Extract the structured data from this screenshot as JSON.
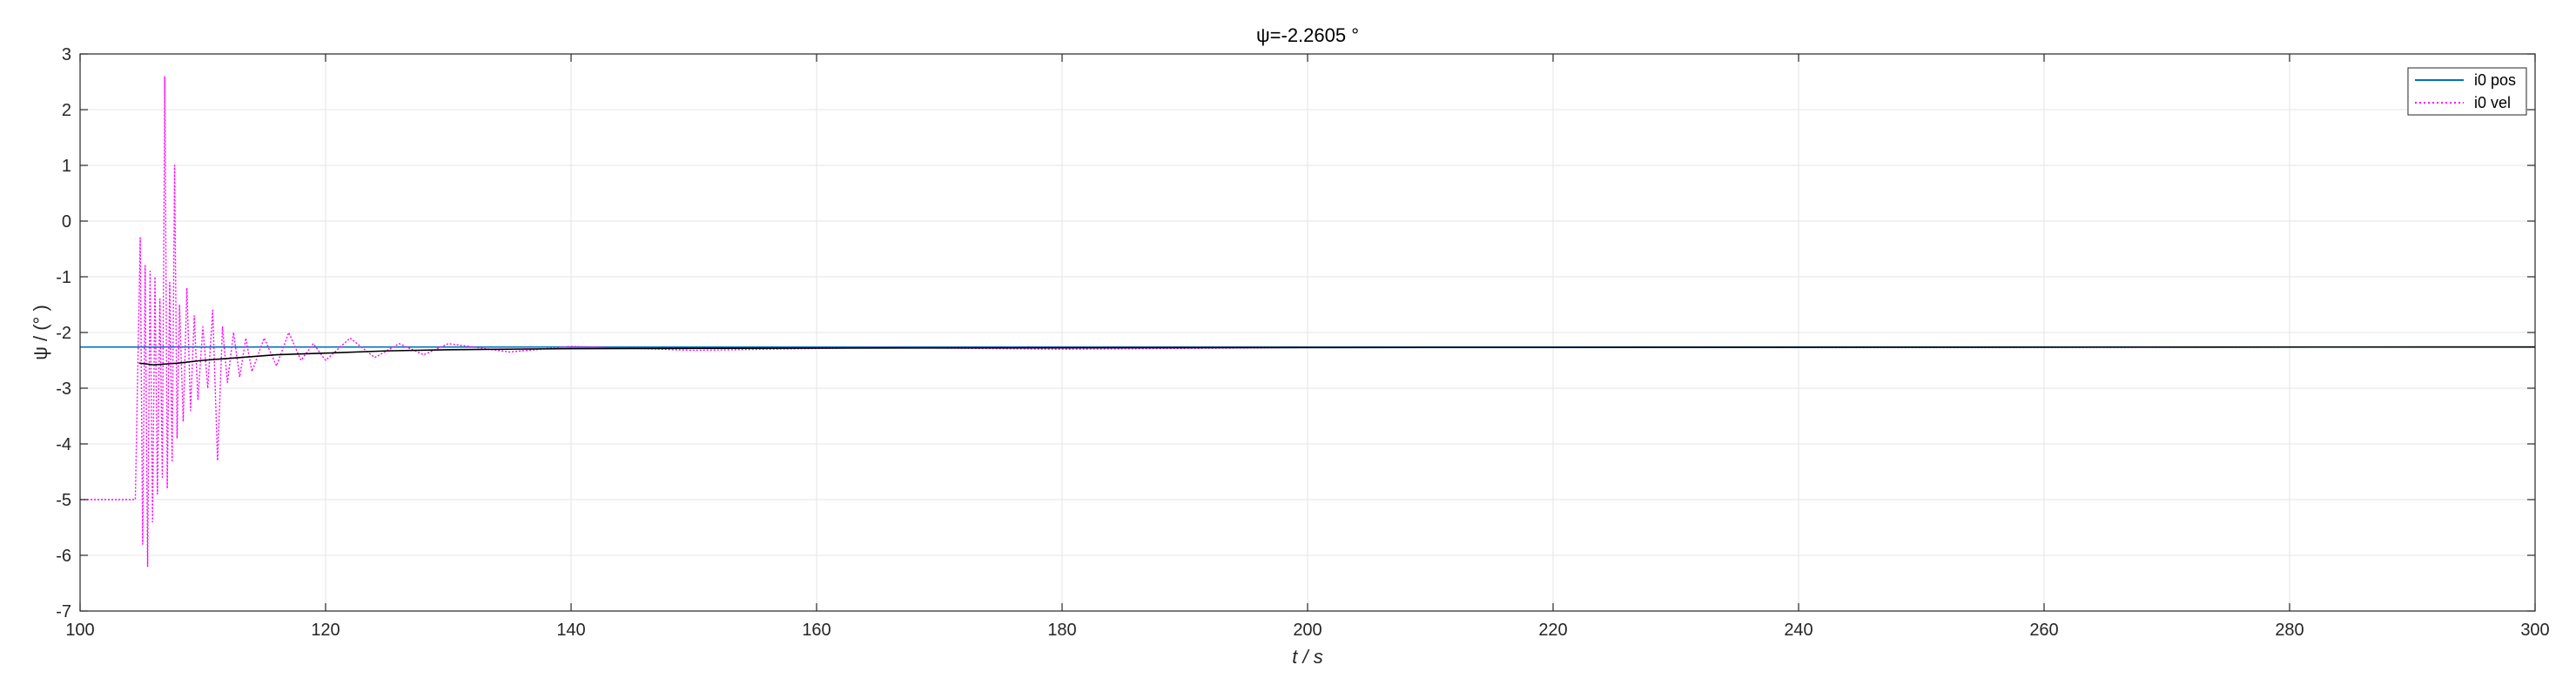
{
  "chart_data": {
    "type": "line",
    "title": "ψ=-2.2605 °",
    "xlabel": "t  / s",
    "ylabel": "ψ / (° )",
    "xlim": [
      100,
      300
    ],
    "ylim": [
      -7,
      3
    ],
    "xticks": [
      100,
      120,
      140,
      160,
      180,
      200,
      220,
      240,
      260,
      280,
      300
    ],
    "yticks": [
      -7,
      -6,
      -5,
      -4,
      -3,
      -2,
      -1,
      0,
      1,
      2,
      3
    ],
    "grid": true,
    "legend_position": "top-right",
    "series": [
      {
        "name": "i0 pos",
        "color": "#0072BD",
        "style": "solid",
        "x": [
          100,
          105,
          110,
          120,
          140,
          160,
          200,
          250,
          300
        ],
        "y": [
          -2.26,
          -2.26,
          -2.26,
          -2.26,
          -2.26,
          -2.26,
          -2.26,
          -2.26,
          -2.26
        ]
      },
      {
        "name": "i0 vel",
        "color": "#FF00FF",
        "style": "dotted",
        "x": [
          100,
          104.5,
          104.9,
          105.1,
          105.3,
          105.5,
          105.7,
          105.9,
          106.1,
          106.3,
          106.5,
          106.7,
          106.9,
          107.1,
          107.3,
          107.5,
          107.7,
          107.9,
          108.1,
          108.4,
          108.7,
          109.0,
          109.3,
          109.6,
          110.0,
          110.4,
          110.8,
          111.2,
          111.6,
          112.0,
          112.5,
          113.0,
          113.5,
          114.0,
          115.0,
          116.0,
          117.0,
          118.0,
          119.0,
          120.0,
          122.0,
          124.0,
          126.0,
          128.0,
          130.0,
          135.0,
          140.0,
          150.0,
          165.0,
          180.0,
          200.0,
          240.0,
          300.0
        ],
        "y": [
          -5.0,
          -5.0,
          -0.3,
          -5.8,
          -0.8,
          -6.2,
          -0.9,
          -5.4,
          -1.0,
          -4.9,
          -1.4,
          -4.6,
          2.6,
          -4.8,
          -1.1,
          -4.3,
          1.0,
          -3.9,
          -1.5,
          -3.6,
          -1.2,
          -3.4,
          -1.7,
          -3.2,
          -1.9,
          -3.0,
          -1.6,
          -4.3,
          -1.9,
          -2.9,
          -2.0,
          -2.8,
          -2.1,
          -2.7,
          -2.1,
          -2.6,
          -2.0,
          -2.5,
          -2.2,
          -2.5,
          -2.1,
          -2.45,
          -2.2,
          -2.4,
          -2.2,
          -2.35,
          -2.25,
          -2.32,
          -2.27,
          -2.3,
          -2.27,
          -2.27,
          -2.26
        ]
      },
      {
        "name": "",
        "color": "#000000",
        "style": "solid",
        "x": [
          104.8,
          106,
          108,
          110,
          113,
          116,
          120,
          125,
          130,
          140,
          160,
          200,
          300
        ],
        "y": [
          -2.55,
          -2.58,
          -2.55,
          -2.5,
          -2.45,
          -2.4,
          -2.37,
          -2.33,
          -2.31,
          -2.29,
          -2.28,
          -2.27,
          -2.26
        ]
      }
    ]
  }
}
